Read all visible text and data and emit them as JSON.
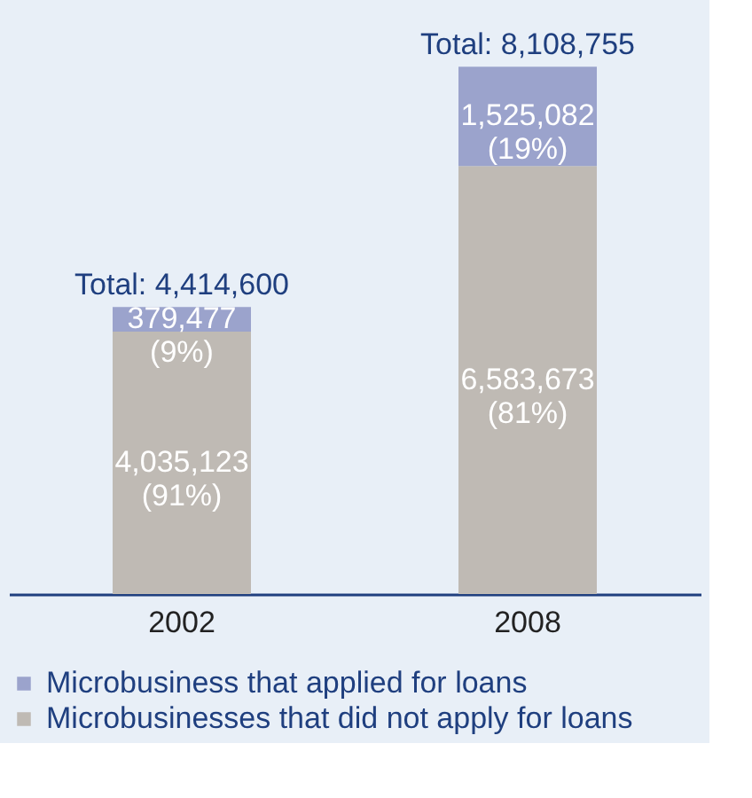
{
  "chart_data": {
    "type": "bar",
    "stacked": true,
    "categories": [
      "2002",
      "2008"
    ],
    "series": [
      {
        "name": "Microbusinesses that did not apply for loans",
        "color": "#bfbab4",
        "values": [
          4035123,
          6583673
        ],
        "value_labels": [
          "4,035,123\n(91%)",
          "6,583,673\n(81%)"
        ]
      },
      {
        "name": "Microbusiness that applied for loans",
        "color": "#9ba3cc",
        "values": [
          379477,
          1525082
        ],
        "value_labels": [
          "379,477\n(9%)",
          "1,525,082\n(19%)"
        ]
      }
    ],
    "totals": [
      "Total: 4,414,600",
      "Total: 8,108,755"
    ],
    "legend": "bottom"
  }
}
